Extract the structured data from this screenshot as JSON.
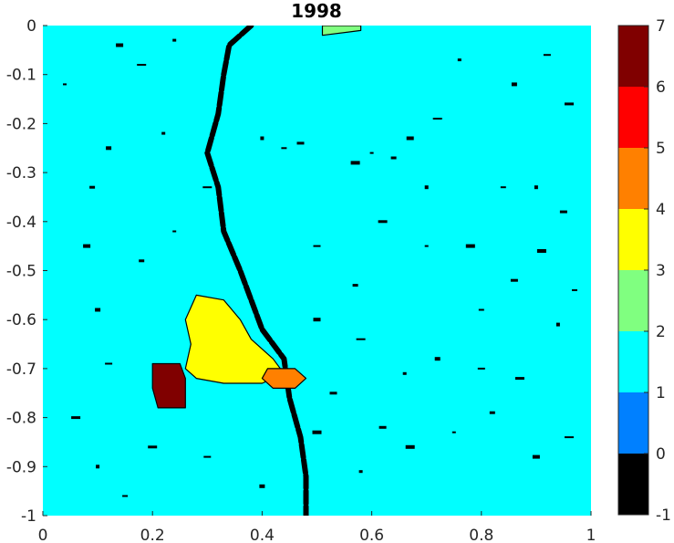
{
  "chart_data": {
    "type": "heatmap",
    "title": "1998",
    "xlabel": "",
    "ylabel": "",
    "xlim": [
      0,
      1
    ],
    "ylim": [
      -1,
      0
    ],
    "x_ticks": [
      "0",
      "0.2",
      "0.4",
      "0.6",
      "0.8",
      "1"
    ],
    "y_ticks": [
      "0",
      "-0.1",
      "-0.2",
      "-0.3",
      "-0.4",
      "-0.5",
      "-0.6",
      "-0.7",
      "-0.8",
      "-0.9",
      "-1"
    ],
    "colorbar": {
      "range": [
        -1,
        7
      ],
      "ticks": [
        "-1",
        "0",
        "1",
        "2",
        "3",
        "4",
        "5",
        "6",
        "7"
      ],
      "bands": [
        {
          "from": -1,
          "to": 0,
          "color": "#000000"
        },
        {
          "from": 0,
          "to": 1,
          "color": "#0080ff"
        },
        {
          "from": 1,
          "to": 2,
          "color": "#00ffff"
        },
        {
          "from": 2,
          "to": 3,
          "color": "#80ff80"
        },
        {
          "from": 3,
          "to": 4,
          "color": "#ffff00"
        },
        {
          "from": 4,
          "to": 5,
          "color": "#ff8000"
        },
        {
          "from": 5,
          "to": 6,
          "color": "#ff0000"
        },
        {
          "from": 6,
          "to": 7,
          "color": "#800000"
        }
      ]
    },
    "background_value_range": [
      1,
      2
    ],
    "regions": [
      {
        "label": "river",
        "value_range": [
          -1,
          0
        ],
        "path": [
          [
            0.38,
            0.0
          ],
          [
            0.34,
            -0.04
          ],
          [
            0.33,
            -0.1
          ],
          [
            0.32,
            -0.18
          ],
          [
            0.3,
            -0.26
          ],
          [
            0.32,
            -0.33
          ],
          [
            0.33,
            -0.42
          ],
          [
            0.36,
            -0.5
          ],
          [
            0.38,
            -0.56
          ],
          [
            0.4,
            -0.62
          ],
          [
            0.44,
            -0.68
          ],
          [
            0.45,
            -0.76
          ],
          [
            0.47,
            -0.84
          ],
          [
            0.48,
            -0.92
          ],
          [
            0.48,
            -1.0
          ]
        ]
      },
      {
        "label": "yellow-zone",
        "value_range": [
          3,
          4
        ],
        "polygon": [
          [
            0.28,
            -0.55
          ],
          [
            0.33,
            -0.56
          ],
          [
            0.36,
            -0.6
          ],
          [
            0.38,
            -0.64
          ],
          [
            0.42,
            -0.68
          ],
          [
            0.44,
            -0.71
          ],
          [
            0.4,
            -0.73
          ],
          [
            0.33,
            -0.73
          ],
          [
            0.28,
            -0.72
          ],
          [
            0.26,
            -0.7
          ],
          [
            0.27,
            -0.65
          ],
          [
            0.26,
            -0.6
          ]
        ]
      },
      {
        "label": "orange-zone",
        "value_range": [
          4,
          5
        ],
        "polygon": [
          [
            0.41,
            -0.7
          ],
          [
            0.46,
            -0.7
          ],
          [
            0.48,
            -0.72
          ],
          [
            0.46,
            -0.74
          ],
          [
            0.42,
            -0.74
          ],
          [
            0.4,
            -0.72
          ]
        ]
      },
      {
        "label": "dark-red-zone",
        "value_range": [
          6,
          7
        ],
        "polygon": [
          [
            0.2,
            -0.69
          ],
          [
            0.25,
            -0.69
          ],
          [
            0.26,
            -0.72
          ],
          [
            0.26,
            -0.78
          ],
          [
            0.21,
            -0.78
          ],
          [
            0.2,
            -0.74
          ]
        ]
      },
      {
        "label": "green-patch",
        "value_range": [
          2,
          3
        ],
        "polygon": [
          [
            0.51,
            0.0
          ],
          [
            0.58,
            0.0
          ],
          [
            0.58,
            -0.01
          ],
          [
            0.51,
            -0.02
          ]
        ]
      }
    ],
    "specks": [
      [
        0.04,
        -0.12,
        0
      ],
      [
        0.09,
        -0.33
      ],
      [
        0.14,
        -0.04
      ],
      [
        0.18,
        -0.08
      ],
      [
        0.24,
        -0.03
      ],
      [
        0.1,
        -0.58
      ],
      [
        0.12,
        -0.69
      ],
      [
        0.06,
        -0.8
      ],
      [
        0.4,
        -0.23
      ],
      [
        0.44,
        -0.25
      ],
      [
        0.47,
        -0.24
      ],
      [
        0.57,
        -0.28
      ],
      [
        0.6,
        -0.26
      ],
      [
        0.64,
        -0.27
      ],
      [
        0.67,
        -0.23
      ],
      [
        0.72,
        -0.19
      ],
      [
        0.76,
        -0.07
      ],
      [
        0.86,
        -0.12
      ],
      [
        0.92,
        -0.06
      ],
      [
        0.96,
        -0.16
      ],
      [
        0.9,
        -0.33
      ],
      [
        0.84,
        -0.33
      ],
      [
        0.95,
        -0.38
      ],
      [
        0.78,
        -0.45
      ],
      [
        0.7,
        -0.45
      ],
      [
        0.57,
        -0.53
      ],
      [
        0.5,
        -0.6
      ],
      [
        0.58,
        -0.64
      ],
      [
        0.66,
        -0.71
      ],
      [
        0.72,
        -0.68
      ],
      [
        0.8,
        -0.7
      ],
      [
        0.87,
        -0.72
      ],
      [
        0.94,
        -0.61
      ],
      [
        0.97,
        -0.54
      ],
      [
        0.62,
        -0.82
      ],
      [
        0.67,
        -0.86
      ],
      [
        0.75,
        -0.83
      ],
      [
        0.82,
        -0.79
      ],
      [
        0.9,
        -0.88
      ],
      [
        0.96,
        -0.84
      ],
      [
        0.58,
        -0.91
      ],
      [
        0.4,
        -0.94
      ],
      [
        0.3,
        -0.88
      ],
      [
        0.2,
        -0.86
      ],
      [
        0.1,
        -0.9
      ],
      [
        0.15,
        -0.96
      ],
      [
        0.53,
        -0.75
      ],
      [
        0.5,
        -0.83
      ],
      [
        0.24,
        -0.42
      ],
      [
        0.18,
        -0.48
      ],
      [
        0.08,
        -0.45
      ],
      [
        0.3,
        -0.33
      ],
      [
        0.22,
        -0.22
      ],
      [
        0.12,
        -0.25
      ],
      [
        0.5,
        -0.45
      ],
      [
        0.62,
        -0.4
      ],
      [
        0.7,
        -0.33
      ],
      [
        0.8,
        -0.58
      ],
      [
        0.86,
        -0.52
      ],
      [
        0.91,
        -0.46
      ]
    ]
  }
}
